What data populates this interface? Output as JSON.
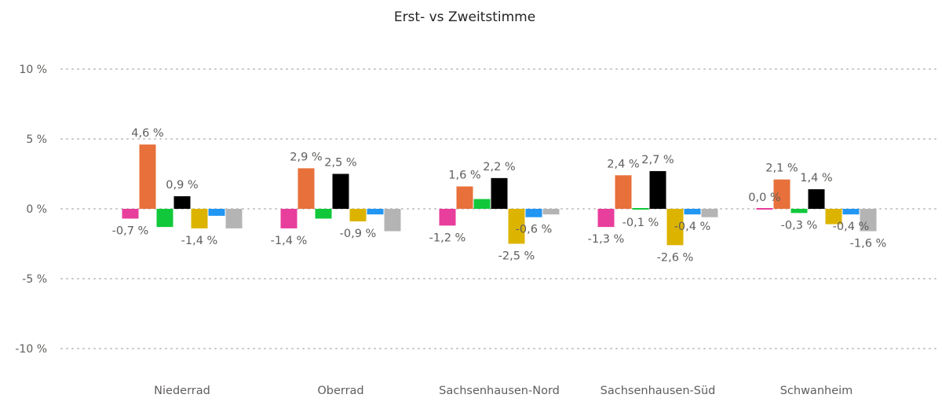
{
  "chart_data": {
    "type": "bar",
    "title": "Erst- vs Zweitstimme",
    "xlabel": "",
    "ylabel": "",
    "ylim": [
      -10,
      10
    ],
    "yticks": [
      10,
      5,
      0,
      -5,
      -10
    ],
    "ytick_labels": [
      "10 %",
      "5 %",
      "0 %",
      "-5 %",
      "-10 %"
    ],
    "grid": true,
    "legend": "none",
    "categories": [
      "Niederrad",
      "Oberrad",
      "Sachsenhausen-Nord",
      "Sachsenhausen-Süd",
      "Schwanheim"
    ],
    "series": [
      {
        "color": "#e83e9c",
        "values": [
          -0.7,
          -1.4,
          -1.2,
          -1.3,
          0.0
        ],
        "labels": [
          "-0,7 %",
          "-1,4 %",
          "-1,2 %",
          "-1,3 %",
          "0,0 %"
        ]
      },
      {
        "color": "#e8703a",
        "values": [
          4.6,
          2.9,
          1.6,
          2.4,
          2.1
        ],
        "labels": [
          "4,6 %",
          "2,9 %",
          "1,6 %",
          "2,4 %",
          "2,1 %"
        ]
      },
      {
        "color": "#11c83a",
        "values": [
          -1.3,
          -0.7,
          0.7,
          -0.1,
          -0.3
        ],
        "labels": [
          null,
          null,
          null,
          "-0,1 %",
          "-0,3 %"
        ]
      },
      {
        "color": "#000000",
        "values": [
          0.9,
          2.5,
          2.2,
          2.7,
          1.4
        ],
        "labels": [
          "0,9 %",
          "2,5 %",
          "2,2 %",
          "2,7 %",
          "1,4 %"
        ]
      },
      {
        "color": "#dcb400",
        "values": [
          -1.4,
          -0.9,
          -2.5,
          -2.6,
          -1.1
        ],
        "labels": [
          "-1,4 %",
          "-0,9 %",
          "-2,5 %",
          "-2,6 %",
          null
        ]
      },
      {
        "color": "#2196f3",
        "values": [
          -0.5,
          -0.4,
          -0.6,
          -0.4,
          -0.4
        ],
        "labels": [
          null,
          null,
          "-0,6 %",
          "-0,4 %",
          "-0,4 %"
        ]
      },
      {
        "color": "#b4b4b4",
        "values": [
          -1.4,
          -1.6,
          -0.4,
          -0.6,
          -1.6
        ],
        "labels": [
          null,
          null,
          null,
          null,
          "-1,6 %"
        ]
      }
    ]
  }
}
